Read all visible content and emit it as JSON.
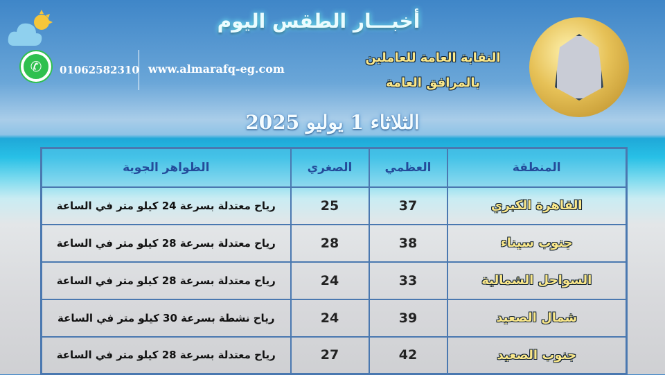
{
  "header": {
    "title": "أخبـــار الطقس اليوم",
    "phone": "01062582310",
    "website": "www.almarafq-eg.com",
    "union_line1": "النقابة العامة للعاملين",
    "union_line2": "بالمرافق العامة",
    "date": "الثلاثاء 1 يوليو 2025"
  },
  "icons": {
    "weather": "cloud-sun-icon",
    "contact": "whatsapp-icon",
    "logo": "union-emblem"
  },
  "table": {
    "headers": [
      "المنطقة",
      "العظمي",
      "الصغري",
      "الظواهر الجوية"
    ],
    "rows": [
      {
        "region": "القاهرة الكبري",
        "max": "37",
        "min": "25",
        "desc": "رياح معتدلة بسرعة 24 كيلو متر في الساعة"
      },
      {
        "region": "جنوب سيناء",
        "max": "38",
        "min": "28",
        "desc": "رياح معتدلة بسرعة 28 كيلو متر في الساعة"
      },
      {
        "region": "السواحل الشمالية",
        "max": "33",
        "min": "24",
        "desc": "رياح معتدلة بسرعة 28 كيلو متر في الساعة"
      },
      {
        "region": "شمال الصعيد",
        "max": "39",
        "min": "24",
        "desc": "رياح نشطة بسرعة 30 كيلو متر في الساعة"
      },
      {
        "region": "جنوب الصعيد",
        "max": "42",
        "min": "27",
        "desc": "رياح معتدلة بسرعة 28 كيلو متر في الساعة"
      }
    ]
  }
}
